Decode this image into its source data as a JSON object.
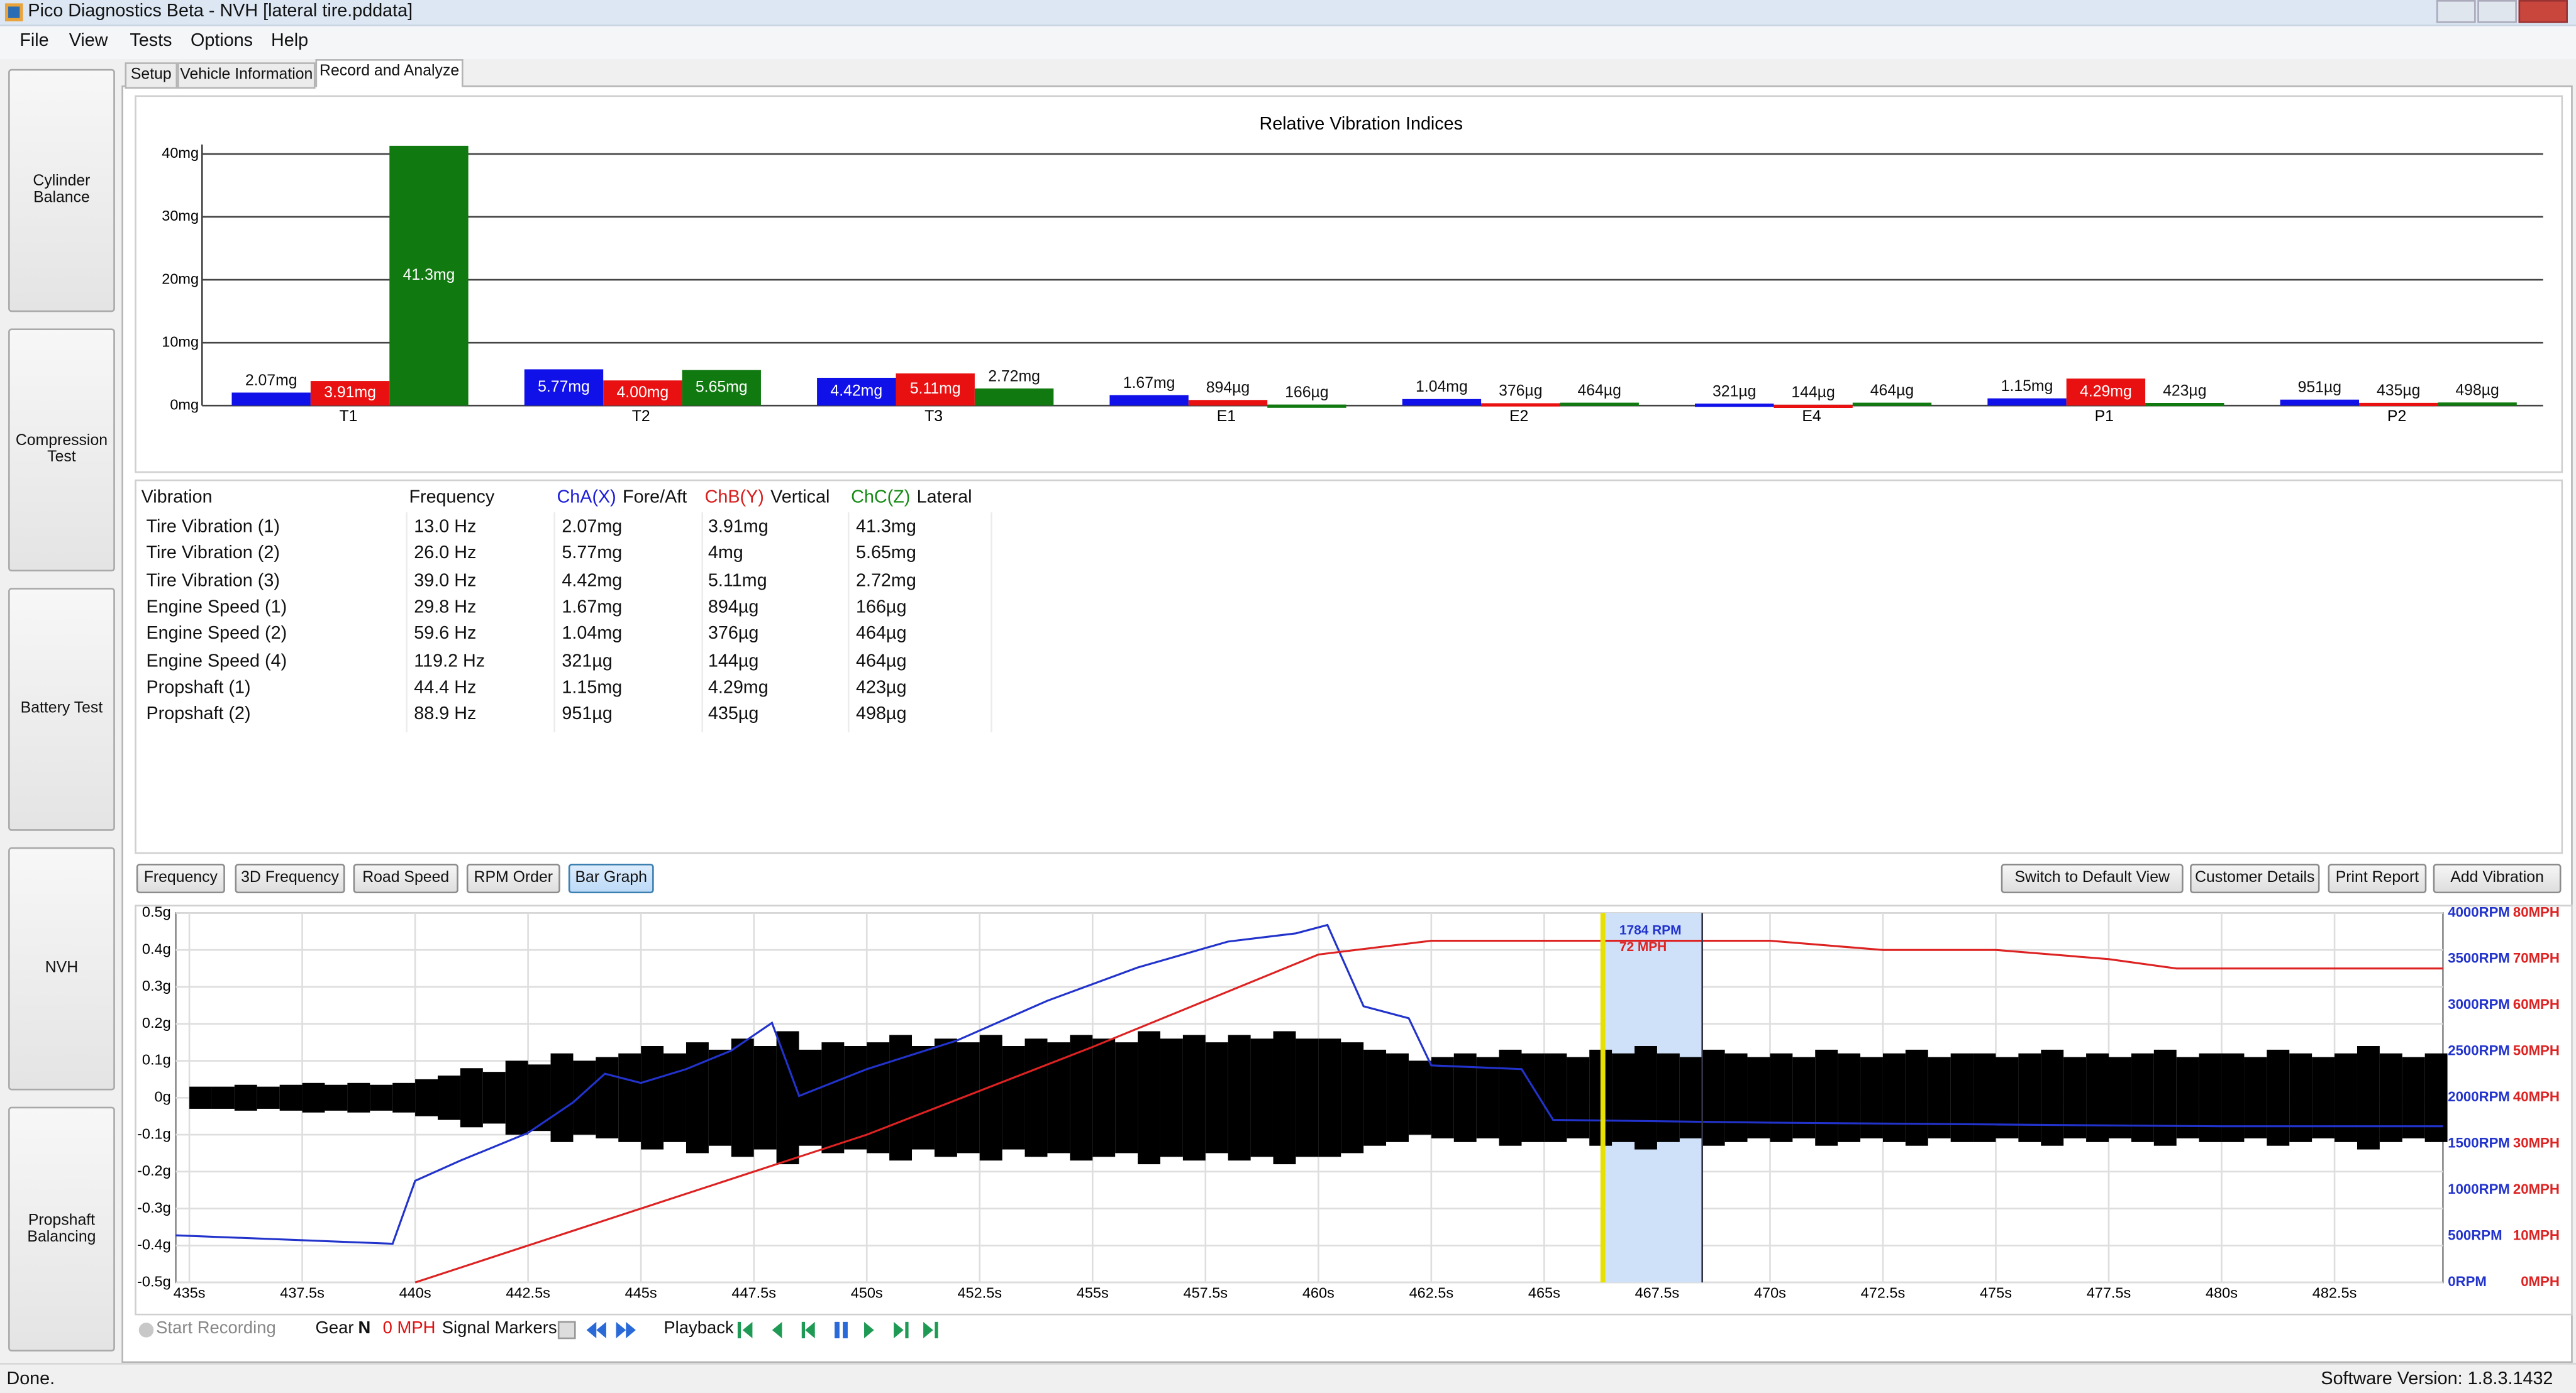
{
  "window": {
    "title": "Pico Diagnostics Beta - NVH [lateral tire.pddata]"
  },
  "menu": [
    "File",
    "View",
    "Tests",
    "Options",
    "Help"
  ],
  "tabs": [
    "Setup",
    "Vehicle Information",
    "Record and Analyze"
  ],
  "side_buttons": [
    "Cylinder Balance",
    "Compression Test",
    "Battery Test",
    "NVH",
    "Propshaft Balancing"
  ],
  "chart_data": [
    {
      "type": "bar",
      "title": "Relative Vibration Indices",
      "categories": [
        "T1",
        "T2",
        "T3",
        "E1",
        "E2",
        "E4",
        "P1",
        "P2"
      ],
      "series": [
        {
          "color": "#1010e8",
          "values": [
            2.07,
            5.77,
            4.42,
            1.67,
            1.04,
            0.321,
            1.15,
            0.951
          ],
          "value_labels": [
            "2.07mg",
            "5.77mg",
            "4.42mg",
            "1.67mg",
            "1.04mg",
            "321µg",
            "1.15mg",
            "951µg"
          ]
        },
        {
          "color": "#e81010",
          "values": [
            3.91,
            4.0,
            5.11,
            0.894,
            0.376,
            0.144,
            4.29,
            0.435
          ],
          "value_labels": [
            "3.91mg",
            "4.00mg",
            "5.11mg",
            "894µg",
            "376µg",
            "144µg",
            "4.29mg",
            "435µg"
          ]
        },
        {
          "color": "#107a10",
          "values": [
            41.3,
            5.65,
            2.72,
            0.166,
            0.464,
            0.464,
            0.423,
            0.498
          ],
          "value_labels": [
            "41.3mg",
            "5.65mg",
            "2.72mg",
            "166µg",
            "464µg",
            "464µg",
            "423µg",
            "498µg"
          ]
        }
      ],
      "ylim": [
        0,
        41.5
      ],
      "yticks": [
        {
          "value": 0,
          "label": "0mg"
        },
        {
          "value": 10,
          "label": "10mg"
        },
        {
          "value": 20,
          "label": "20mg"
        },
        {
          "value": 30,
          "label": "30mg"
        },
        {
          "value": 40,
          "label": "40mg"
        }
      ],
      "grid": true
    },
    {
      "type": "line",
      "xlim": [
        434.7,
        484.9
      ],
      "xticks": [
        {
          "value": 435,
          "label": "435s"
        },
        {
          "value": 437.5,
          "label": "437.5s"
        },
        {
          "value": 440,
          "label": "440s"
        },
        {
          "value": 442.5,
          "label": "442.5s"
        },
        {
          "value": 445,
          "label": "445s"
        },
        {
          "value": 447.5,
          "label": "447.5s"
        },
        {
          "value": 450,
          "label": "450s"
        },
        {
          "value": 452.5,
          "label": "452.5s"
        },
        {
          "value": 455,
          "label": "455s"
        },
        {
          "value": 457.5,
          "label": "457.5s"
        },
        {
          "value": 460,
          "label": "460s"
        },
        {
          "value": 462.5,
          "label": "462.5s"
        },
        {
          "value": 465,
          "label": "465s"
        },
        {
          "value": 467.5,
          "label": "467.5s"
        },
        {
          "value": 470,
          "label": "470s"
        },
        {
          "value": 472.5,
          "label": "472.5s"
        },
        {
          "value": 475,
          "label": "475s"
        },
        {
          "value": 477.5,
          "label": "477.5s"
        },
        {
          "value": 480,
          "label": "480s"
        },
        {
          "value": 482.5,
          "label": "482.5s"
        }
      ],
      "ylim": [
        -0.5,
        0.5
      ],
      "yticks": [
        {
          "value": 0.5,
          "label": "0.5g"
        },
        {
          "value": 0.4,
          "label": "0.4g"
        },
        {
          "value": 0.3,
          "label": "0.3g"
        },
        {
          "value": 0.2,
          "label": "0.2g"
        },
        {
          "value": 0.1,
          "label": "0.1g"
        },
        {
          "value": 0,
          "label": "0g"
        },
        {
          "value": -0.1,
          "label": "-0.1g"
        },
        {
          "value": -0.2,
          "label": "-0.2g"
        },
        {
          "value": -0.3,
          "label": "-0.3g"
        },
        {
          "value": -0.4,
          "label": "-0.4g"
        },
        {
          "value": -0.5,
          "label": "-0.5g"
        }
      ],
      "y2lim": [
        0,
        4000
      ],
      "y2ticks": [
        {
          "value": 4000,
          "label": "4000RPM"
        },
        {
          "value": 3500,
          "label": "3500RPM"
        },
        {
          "value": 3000,
          "label": "3000RPM"
        },
        {
          "value": 2500,
          "label": "2500RPM"
        },
        {
          "value": 2000,
          "label": "2000RPM"
        },
        {
          "value": 1500,
          "label": "1500RPM"
        },
        {
          "value": 1000,
          "label": "1000RPM"
        },
        {
          "value": 500,
          "label": "500RPM"
        },
        {
          "value": 0,
          "label": "0RPM"
        }
      ],
      "y3lim": [
        0,
        80
      ],
      "y3ticks": [
        {
          "value": 80,
          "label": "80MPH"
        },
        {
          "value": 70,
          "label": "70MPH"
        },
        {
          "value": 60,
          "label": "60MPH"
        },
        {
          "value": 50,
          "label": "50MPH"
        },
        {
          "value": 40,
          "label": "40MPH"
        },
        {
          "value": 30,
          "label": "30MPH"
        },
        {
          "value": 20,
          "label": "20MPH"
        },
        {
          "value": 10,
          "label": "10MPH"
        },
        {
          "value": 0,
          "label": "0MPH"
        }
      ],
      "grid": true,
      "series": [
        {
          "color": "#000000",
          "envelope": true,
          "x": [
            435,
            435.5,
            436,
            436.5,
            437,
            437.5,
            438,
            438.5,
            439,
            439.5,
            440,
            440.5,
            441,
            441.5,
            442,
            442.5,
            443,
            443.5,
            444,
            444.5,
            445,
            445.5,
            446,
            446.5,
            447,
            447.5,
            448,
            448.5,
            449,
            449.5,
            450,
            450.5,
            451,
            451.5,
            452,
            452.5,
            453,
            453.5,
            454,
            454.5,
            455,
            455.5,
            456,
            456.5,
            457,
            457.5,
            458,
            458.5,
            459,
            459.5,
            460,
            460.5,
            461,
            461.5,
            462,
            462.5,
            463,
            463.5,
            464,
            464.5,
            465,
            465.5,
            466,
            466.5,
            467,
            467.5,
            468,
            468.5,
            469,
            469.5,
            470,
            470.5,
            471,
            471.5,
            472,
            472.5,
            473,
            473.5,
            474,
            474.5,
            475,
            475.5,
            476,
            476.5,
            477,
            477.5,
            478,
            478.5,
            479,
            479.5,
            480,
            480.5,
            481,
            481.5,
            482,
            482.5,
            483,
            483.5,
            484,
            484.5
          ],
          "values": [
            0.03,
            0.03,
            0.035,
            0.03,
            0.035,
            0.04,
            0.035,
            0.04,
            0.035,
            0.04,
            0.05,
            0.06,
            0.08,
            0.07,
            0.1,
            0.09,
            0.12,
            0.1,
            0.11,
            0.12,
            0.14,
            0.12,
            0.15,
            0.13,
            0.16,
            0.14,
            0.18,
            0.13,
            0.15,
            0.14,
            0.15,
            0.17,
            0.14,
            0.16,
            0.15,
            0.17,
            0.14,
            0.16,
            0.15,
            0.17,
            0.16,
            0.15,
            0.18,
            0.16,
            0.17,
            0.15,
            0.17,
            0.16,
            0.18,
            0.16,
            0.16,
            0.15,
            0.13,
            0.12,
            0.1,
            0.11,
            0.12,
            0.11,
            0.13,
            0.12,
            0.12,
            0.11,
            0.13,
            0.12,
            0.14,
            0.12,
            0.11,
            0.13,
            0.12,
            0.11,
            0.12,
            0.11,
            0.13,
            0.12,
            0.11,
            0.12,
            0.13,
            0.11,
            0.12,
            0.12,
            0.11,
            0.12,
            0.13,
            0.11,
            0.12,
            0.11,
            0.12,
            0.13,
            0.11,
            0.12,
            0.12,
            0.11,
            0.13,
            0.12,
            0.11,
            0.12,
            0.14,
            0.12,
            0.11,
            0.12
          ]
        },
        {
          "color": "#2233cc",
          "axis": "y2",
          "x": [
            434.7,
            439.5,
            440,
            441,
            442.5,
            443.5,
            444.2,
            445,
            446,
            447,
            447.9,
            448.5,
            450,
            452,
            454,
            456,
            458,
            459.5,
            460.2,
            461,
            462,
            462.5,
            464.5,
            465.2,
            470,
            475,
            480,
            484.9
          ],
          "values": [
            510,
            420,
            1100,
            1320,
            1620,
            1950,
            2260,
            2160,
            2310,
            2510,
            2810,
            2020,
            2310,
            2620,
            3050,
            3410,
            3690,
            3780,
            3870,
            2990,
            2860,
            2350,
            2310,
            1760,
            1730,
            1710,
            1690,
            1690
          ]
        },
        {
          "color": "#dd2222",
          "axis": "y3",
          "x": [
            440,
            445,
            450,
            455,
            460,
            462.5,
            465,
            470,
            472.5,
            475,
            477.5,
            479,
            484.9
          ],
          "values": [
            0,
            16,
            32,
            51,
            71,
            74,
            74,
            74,
            72,
            72,
            70,
            68,
            68
          ]
        }
      ],
      "cursor": {
        "start": 466.3,
        "end": 468.5,
        "labels": [
          "1784 RPM",
          "72 MPH"
        ]
      }
    }
  ],
  "table": {
    "columns": [
      "Vibration",
      "Frequency",
      "ChA(X)",
      "Fore/Aft",
      "ChB(Y)",
      "Vertical",
      "ChC(Z)",
      "Lateral"
    ],
    "rows": [
      [
        "Tire Vibration (1)",
        "13.0 Hz",
        "2.07mg",
        "3.91mg",
        "41.3mg"
      ],
      [
        "Tire Vibration (2)",
        "26.0 Hz",
        "5.77mg",
        "4mg",
        "5.65mg"
      ],
      [
        "Tire Vibration (3)",
        "39.0 Hz",
        "4.42mg",
        "5.11mg",
        "2.72mg"
      ],
      [
        "Engine Speed (1)",
        "29.8 Hz",
        "1.67mg",
        "894µg",
        "166µg"
      ],
      [
        "Engine Speed (2)",
        "59.6 Hz",
        "1.04mg",
        "376µg",
        "464µg"
      ],
      [
        "Engine Speed (4)",
        "119.2 Hz",
        "321µg",
        "144µg",
        "464µg"
      ],
      [
        "Propshaft (1)",
        "44.4 Hz",
        "1.15mg",
        "4.29mg",
        "423µg"
      ],
      [
        "Propshaft (2)",
        "88.9 Hz",
        "951µg",
        "435µg",
        "498µg"
      ]
    ]
  },
  "view_buttons": [
    "Frequency",
    "3D Frequency",
    "Road Speed",
    "RPM Order",
    "Bar Graph"
  ],
  "action_buttons": [
    "Switch to Default View",
    "Customer Details",
    "Print Report",
    "Add Vibration"
  ],
  "toolbar": {
    "record": "Start Recording",
    "gear_label": "Gear",
    "gear": "N",
    "speed": "0 MPH",
    "markers": "Signal Markers",
    "playback": "Playback"
  },
  "status": {
    "left": "Done.",
    "version": "Software Version: 1.8.3.1432"
  }
}
